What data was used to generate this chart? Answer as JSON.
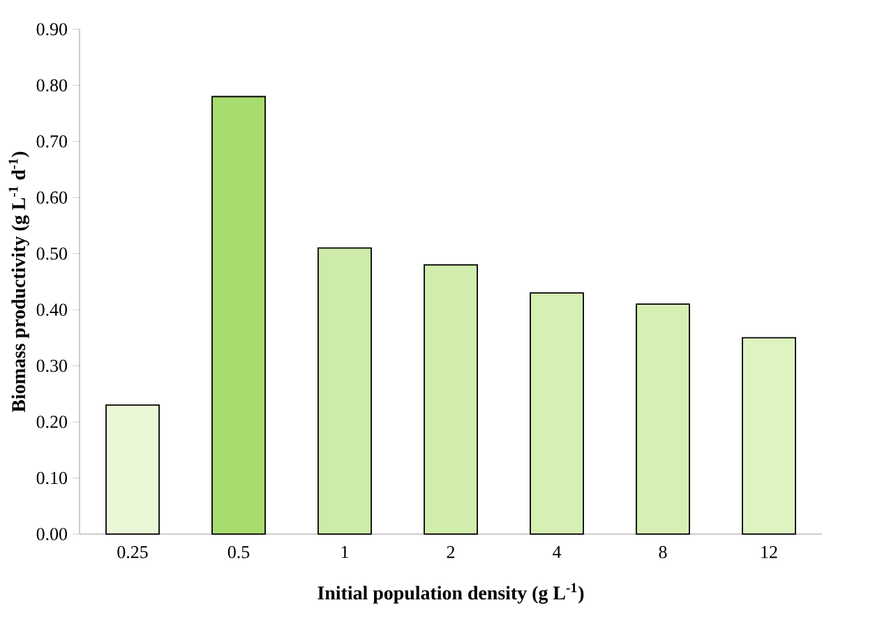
{
  "chart_data": {
    "type": "bar",
    "xlabel": "Initial population density (g L$^{-1}$)",
    "ylabel": "Biomass productivity (g L$^{-1}$ d$^{-1}$)",
    "categories": [
      "0.25",
      "0.5",
      "1",
      "2",
      "4",
      "8",
      "12"
    ],
    "values": [
      0.23,
      0.78,
      0.51,
      0.48,
      0.43,
      0.41,
      0.35
    ],
    "colors": [
      "#ebf8d8",
      "#a9dc6e",
      "#cdecaa",
      "#d1eeae",
      "#d5f0b2",
      "#d6f0b4",
      "#ddf3c0"
    ],
    "ylim": [
      0,
      0.9
    ],
    "yticks": [
      {
        "value": 0,
        "label": "0.00"
      },
      {
        "value": 0.1,
        "label": "0.10"
      },
      {
        "value": 0.2,
        "label": "0.20"
      },
      {
        "value": 0.3,
        "label": "0.30"
      },
      {
        "value": 0.4,
        "label": "0.40"
      },
      {
        "value": 0.5,
        "label": "0.50"
      },
      {
        "value": 0.6,
        "label": "0.60"
      },
      {
        "value": 0.7,
        "label": "0.70"
      },
      {
        "value": 0.8,
        "label": "0.80"
      },
      {
        "value": 0.9,
        "label": "0.90"
      }
    ],
    "grid": false
  }
}
